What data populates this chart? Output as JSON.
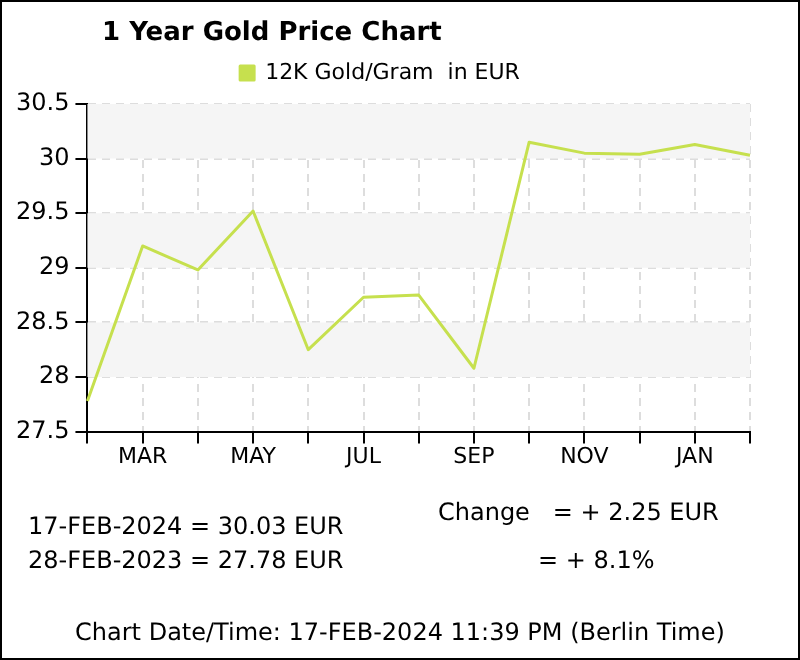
{
  "chart_data": {
    "type": "line",
    "title": "1 Year Gold Price Chart",
    "categories": [
      null,
      "MAR",
      null,
      "MAY",
      null,
      "JUL",
      null,
      "SEP",
      null,
      "NOV",
      null,
      "JAN",
      null
    ],
    "series": [
      {
        "name": "12K Gold/Gram  in EUR",
        "color": "#c6e04e",
        "values": [
          27.78,
          29.2,
          28.98,
          29.52,
          28.25,
          28.73,
          28.75,
          28.08,
          30.15,
          30.05,
          30.04,
          30.13,
          30.03
        ]
      }
    ],
    "ylim": [
      27.5,
      30.5
    ],
    "yticks": [
      27.5,
      28,
      28.5,
      29,
      29.5,
      30,
      30.5
    ],
    "grid": true,
    "legend": "top",
    "marker": "none",
    "line_style": "solid",
    "annotations": [
      "17-FEB-2024 = 30.03 EUR",
      "28-FEB-2023 = 27.78 EUR",
      "Change   = + 2.25 EUR",
      "= + 8.1%",
      "Chart Date/Time: 17-FEB-2024 11:39 PM (Berlin Time)"
    ]
  }
}
